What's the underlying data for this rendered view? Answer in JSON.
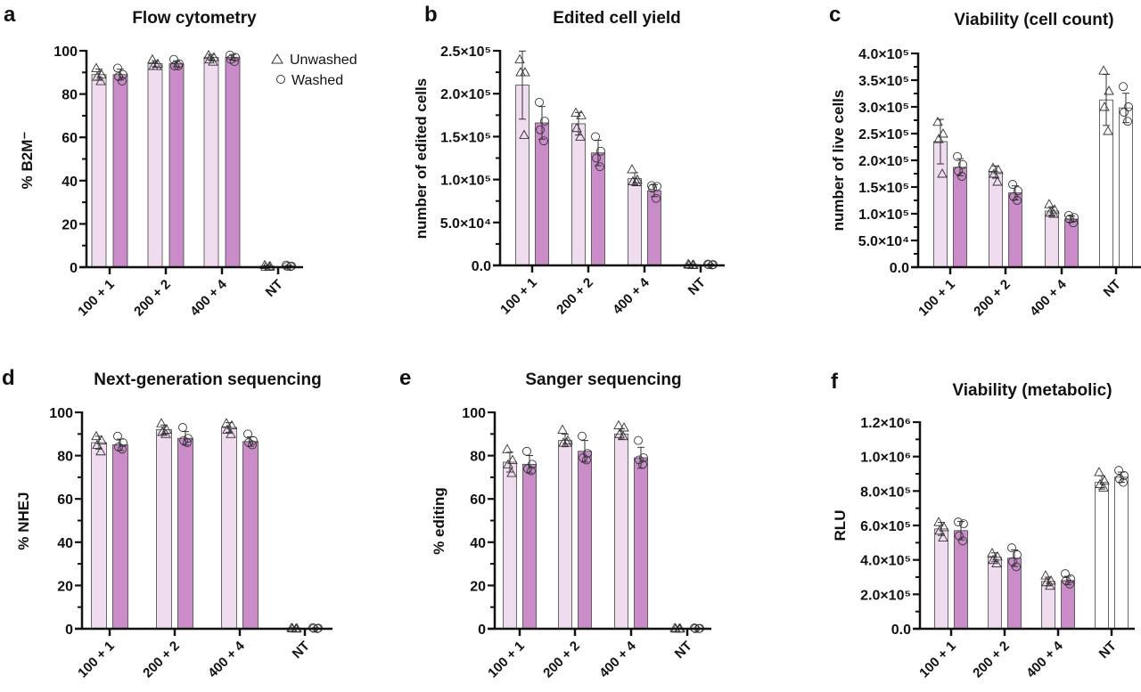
{
  "legend": {
    "placement": "top-right of panel a",
    "items": [
      {
        "label": "Unwashed",
        "marker": "triangle"
      },
      {
        "label": "Washed",
        "marker": "circle"
      }
    ]
  },
  "colors": {
    "unwashed": "#efdcef",
    "washed": "#c98cc8",
    "nt": "#ffffff",
    "axis": "#111111",
    "marker_stroke": "#333333"
  },
  "chart_data": [
    {
      "panel": "a",
      "type": "bar",
      "title": "Flow cytometry",
      "ylabel": "% B2M⁻",
      "xlabel": "",
      "categories": [
        "100 + 1",
        "200 + 2",
        "400 + 4",
        "NT"
      ],
      "ylim": [
        0,
        100
      ],
      "yticks": [
        0,
        20,
        40,
        60,
        80,
        100
      ],
      "ytick_labels": [
        "0",
        "20",
        "40",
        "60",
        "80",
        "100"
      ],
      "minor_ticks": 1,
      "grid": false,
      "nt_white": false,
      "series": [
        {
          "name": "Unwashed",
          "marker": "triangle",
          "values": [
            89,
            94,
            97,
            0.5
          ],
          "points": [
            [
              92,
              89,
              88,
              86
            ],
            [
              96,
              94,
              93,
              93
            ],
            [
              98,
              97,
              96,
              95
            ],
            [
              1,
              0.5,
              0.3,
              0.2
            ]
          ]
        },
        {
          "name": "Washed",
          "marker": "circle",
          "values": [
            89,
            94,
            97,
            0.5
          ],
          "points": [
            [
              92,
              89,
              88,
              86
            ],
            [
              96,
              94,
              93,
              93
            ],
            [
              98,
              97,
              96,
              95
            ],
            [
              1,
              0.5,
              0.4,
              0.3
            ]
          ]
        }
      ]
    },
    {
      "panel": "b",
      "type": "bar",
      "title": "Edited cell yield",
      "ylabel": "number of edited cells",
      "xlabel": "",
      "categories": [
        "100 + 1",
        "200 + 2",
        "400 + 4",
        "NT"
      ],
      "ylim": [
        0,
        250000
      ],
      "yticks": [
        0,
        50000,
        100000,
        150000,
        200000,
        250000
      ],
      "ytick_labels": [
        "0.0",
        "5.0×10⁴",
        "1.0×10⁵",
        "1.5×10⁵",
        "2.0×10⁵",
        "2.5×10⁵"
      ],
      "minor_ticks": 1,
      "grid": false,
      "nt_white": false,
      "series": [
        {
          "name": "Unwashed",
          "marker": "triangle",
          "values": [
            210000,
            165000,
            101000,
            1000
          ],
          "points": [
            [
              240000,
              225000,
              225000,
              152000
            ],
            [
              178000,
              175000,
              160000,
              150000
            ],
            [
              112000,
              100000,
              98000,
              97000
            ],
            [
              1500,
              1000,
              800,
              500
            ]
          ]
        },
        {
          "name": "Washed",
          "marker": "circle",
          "values": [
            166000,
            131000,
            87000,
            1000
          ],
          "points": [
            [
              190000,
              168000,
              158000,
              145000
            ],
            [
              150000,
              133000,
              125000,
              115000
            ],
            [
              93000,
              92000,
              90000,
              78000
            ],
            [
              1500,
              1000,
              800,
              500
            ]
          ]
        }
      ]
    },
    {
      "panel": "c",
      "type": "bar",
      "title": "Viability (cell count)",
      "ylabel": "number of live cells",
      "xlabel": "",
      "categories": [
        "100 + 1",
        "200 + 2",
        "400 + 4",
        "NT"
      ],
      "ylim": [
        0,
        400000
      ],
      "yticks": [
        0,
        50000,
        100000,
        150000,
        200000,
        250000,
        300000,
        350000,
        400000
      ],
      "ytick_labels": [
        "0.0",
        "5.0×10⁴",
        "1.0×10⁵",
        "1.5×10⁵",
        "2.0×10⁵",
        "2.5×10⁵",
        "3.0×10⁵",
        "3.5×10⁵",
        "4.0×10⁵"
      ],
      "minor_ticks": 1,
      "grid": false,
      "nt_white": true,
      "series": [
        {
          "name": "Unwashed",
          "marker": "triangle",
          "values": [
            235000,
            178000,
            105000,
            313000
          ],
          "points": [
            [
              272000,
              250000,
              240000,
              175000
            ],
            [
              186000,
              182000,
              175000,
              160000
            ],
            [
              118000,
              108000,
              102000,
              100000
            ],
            [
              368000,
              330000,
              300000,
              255000
            ]
          ]
        },
        {
          "name": "Washed",
          "marker": "circle",
          "values": [
            187000,
            139000,
            90000,
            298000
          ],
          "points": [
            [
              207000,
              192000,
              180000,
              170000
            ],
            [
              155000,
              143000,
              132000,
              125000
            ],
            [
              97000,
              93000,
              90000,
              83000
            ],
            [
              338000,
              300000,
              290000,
              273000
            ]
          ]
        }
      ]
    },
    {
      "panel": "d",
      "type": "bar",
      "title": "Next-generation sequencing",
      "ylabel": "% NHEJ",
      "xlabel": "",
      "categories": [
        "100 + 1",
        "200 + 2",
        "400 + 4",
        "NT"
      ],
      "ylim": [
        0,
        100
      ],
      "yticks": [
        0,
        20,
        40,
        60,
        80,
        100
      ],
      "ytick_labels": [
        "0",
        "20",
        "40",
        "60",
        "80",
        "100"
      ],
      "minor_ticks": 1,
      "grid": false,
      "nt_white": false,
      "series": [
        {
          "name": "Unwashed",
          "marker": "triangle",
          "values": [
            86,
            92,
            93,
            0.3
          ],
          "points": [
            [
              89,
              87,
              85,
              82
            ],
            [
              95,
              92,
              91,
              90
            ],
            [
              95,
              94,
              92,
              90
            ],
            [
              0.5,
              0.3,
              0.2,
              0.1
            ]
          ]
        },
        {
          "name": "Washed",
          "marker": "circle",
          "values": [
            85,
            88,
            86.5,
            0.3
          ],
          "points": [
            [
              89,
              86,
              84,
              83
            ],
            [
              93,
              88,
              87,
              86
            ],
            [
              90,
              87,
              86,
              85
            ],
            [
              0.5,
              0.3,
              0.2,
              0.1
            ]
          ]
        }
      ]
    },
    {
      "panel": "e",
      "type": "bar",
      "title": "Sanger sequencing",
      "ylabel": "% editing",
      "xlabel": "",
      "categories": [
        "100 + 1",
        "200 + 2",
        "400 + 4",
        "NT"
      ],
      "ylim": [
        0,
        100
      ],
      "yticks": [
        0,
        20,
        40,
        60,
        80,
        100
      ],
      "ytick_labels": [
        "0",
        "20",
        "40",
        "60",
        "80",
        "100"
      ],
      "minor_ticks": 1,
      "grid": false,
      "nt_white": false,
      "series": [
        {
          "name": "Unwashed",
          "marker": "triangle",
          "values": [
            77,
            87,
            90,
            0.2
          ],
          "points": [
            [
              83,
              78,
              76,
              72
            ],
            [
              92,
              87,
              86,
              86
            ],
            [
              94,
              93,
              90,
              89
            ],
            [
              0.4,
              0.2,
              0.1,
              0.1
            ]
          ]
        },
        {
          "name": "Washed",
          "marker": "circle",
          "values": [
            76,
            82,
            79,
            0.2
          ],
          "points": [
            [
              82,
              76,
              74,
              73
            ],
            [
              89,
              81,
              79,
              78
            ],
            [
              87,
              79,
              78,
              76
            ],
            [
              0.4,
              0.2,
              0.1,
              0.1
            ]
          ]
        }
      ]
    },
    {
      "panel": "f",
      "type": "bar",
      "title": "Viability (metabolic)",
      "ylabel": "RLU",
      "xlabel": "",
      "categories": [
        "100 + 1",
        "200 + 2",
        "400 + 4",
        "NT"
      ],
      "ylim": [
        0,
        1200000
      ],
      "yticks": [
        0,
        200000,
        400000,
        600000,
        800000,
        1000000,
        1200000
      ],
      "ytick_labels": [
        "0.0",
        "2.0×10⁵",
        "4.0×10⁵",
        "6.0×10⁵",
        "8.0×10⁵",
        "1.0×10⁶",
        "1.2×10⁶"
      ],
      "minor_ticks": 1,
      "grid": false,
      "nt_white": true,
      "series": [
        {
          "name": "Unwashed",
          "marker": "triangle",
          "values": [
            580000,
            415000,
            275000,
            850000
          ],
          "points": [
            [
              620000,
              590000,
              570000,
              530000
            ],
            [
              440000,
              420000,
              400000,
              380000
            ],
            [
              310000,
              280000,
              270000,
              250000
            ],
            [
              910000,
              860000,
              840000,
              820000
            ]
          ]
        },
        {
          "name": "Washed",
          "marker": "circle",
          "values": [
            570000,
            410000,
            280000,
            880000
          ],
          "points": [
            [
              620000,
              610000,
              540000,
              510000
            ],
            [
              470000,
              430000,
              390000,
              360000
            ],
            [
              320000,
              290000,
              280000,
              260000
            ],
            [
              920000,
              890000,
              870000,
              850000
            ]
          ]
        }
      ]
    }
  ]
}
